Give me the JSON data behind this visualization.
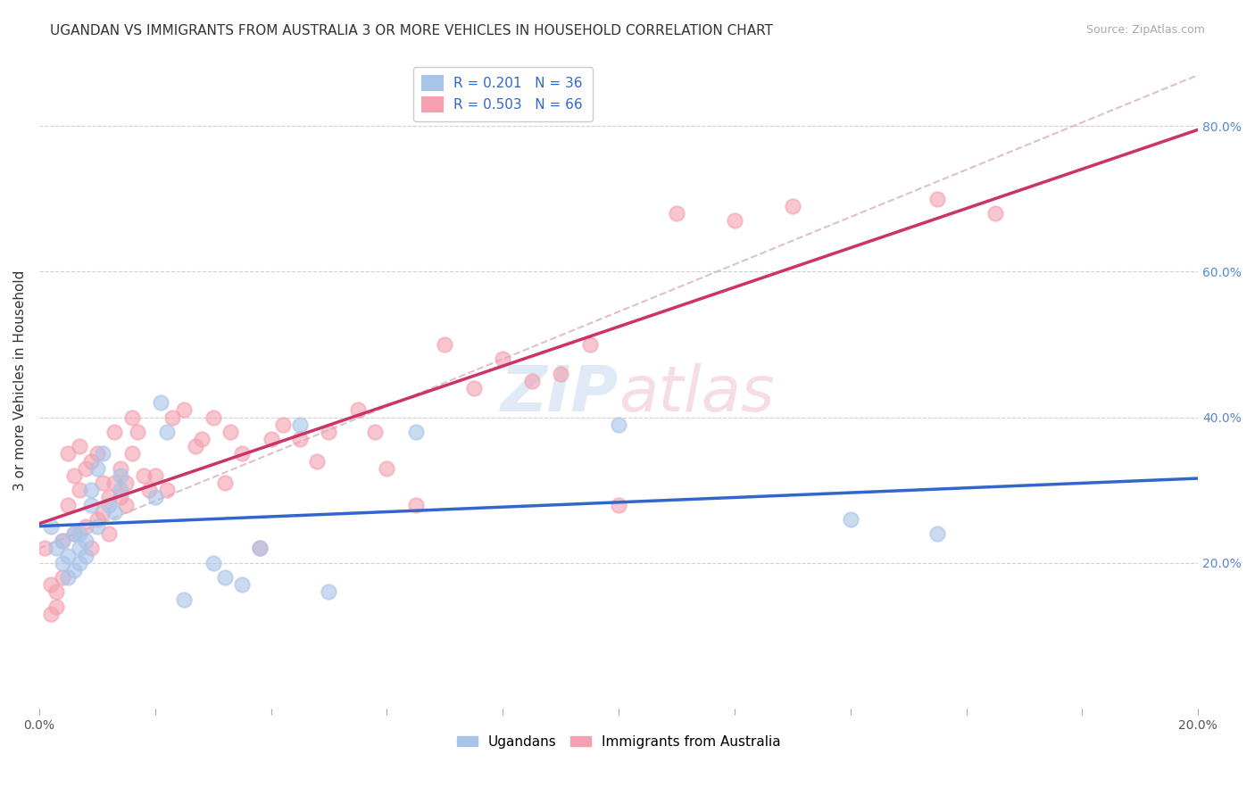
{
  "title": "UGANDAN VS IMMIGRANTS FROM AUSTRALIA 3 OR MORE VEHICLES IN HOUSEHOLD CORRELATION CHART",
  "source": "Source: ZipAtlas.com",
  "ylabel": "3 or more Vehicles in Household",
  "x_min": 0.0,
  "x_max": 0.2,
  "y_min": 0.0,
  "y_max": 0.9,
  "y_ticks_right": [
    0.2,
    0.4,
    0.6,
    0.8
  ],
  "y_tick_labels_right": [
    "20.0%",
    "40.0%",
    "60.0%",
    "80.0%"
  ],
  "ugandan_R": 0.201,
  "ugandan_N": 36,
  "australia_R": 0.503,
  "australia_N": 66,
  "ugandan_color": "#a8c4e8",
  "australia_color": "#f4a0b0",
  "ugandan_line_color": "#3366cc",
  "australia_line_color": "#cc3366",
  "background_color": "#ffffff",
  "grid_color": "#d0d0d0",
  "ugandan_x": [
    0.002,
    0.003,
    0.004,
    0.004,
    0.005,
    0.005,
    0.006,
    0.006,
    0.007,
    0.007,
    0.007,
    0.008,
    0.008,
    0.009,
    0.009,
    0.01,
    0.01,
    0.011,
    0.012,
    0.013,
    0.014,
    0.014,
    0.02,
    0.021,
    0.022,
    0.025,
    0.03,
    0.032,
    0.035,
    0.038,
    0.045,
    0.05,
    0.065,
    0.1,
    0.14,
    0.155
  ],
  "ugandan_y": [
    0.25,
    0.22,
    0.2,
    0.23,
    0.18,
    0.21,
    0.19,
    0.24,
    0.22,
    0.2,
    0.24,
    0.21,
    0.23,
    0.28,
    0.3,
    0.25,
    0.33,
    0.35,
    0.28,
    0.27,
    0.32,
    0.3,
    0.29,
    0.42,
    0.38,
    0.15,
    0.2,
    0.18,
    0.17,
    0.22,
    0.39,
    0.16,
    0.38,
    0.39,
    0.26,
    0.24
  ],
  "australia_x": [
    0.001,
    0.002,
    0.002,
    0.003,
    0.003,
    0.004,
    0.004,
    0.005,
    0.005,
    0.006,
    0.006,
    0.007,
    0.007,
    0.008,
    0.008,
    0.009,
    0.009,
    0.01,
    0.01,
    0.011,
    0.011,
    0.012,
    0.012,
    0.013,
    0.013,
    0.014,
    0.014,
    0.015,
    0.015,
    0.016,
    0.016,
    0.017,
    0.018,
    0.019,
    0.02,
    0.022,
    0.023,
    0.025,
    0.027,
    0.028,
    0.03,
    0.032,
    0.033,
    0.035,
    0.038,
    0.04,
    0.042,
    0.045,
    0.048,
    0.05,
    0.055,
    0.058,
    0.06,
    0.065,
    0.07,
    0.075,
    0.08,
    0.085,
    0.09,
    0.095,
    0.1,
    0.11,
    0.12,
    0.13,
    0.155,
    0.165
  ],
  "australia_y": [
    0.22,
    0.17,
    0.13,
    0.14,
    0.16,
    0.23,
    0.18,
    0.35,
    0.28,
    0.32,
    0.24,
    0.3,
    0.36,
    0.25,
    0.33,
    0.22,
    0.34,
    0.35,
    0.26,
    0.27,
    0.31,
    0.29,
    0.24,
    0.38,
    0.31,
    0.33,
    0.29,
    0.31,
    0.28,
    0.35,
    0.4,
    0.38,
    0.32,
    0.3,
    0.32,
    0.3,
    0.4,
    0.41,
    0.36,
    0.37,
    0.4,
    0.31,
    0.38,
    0.35,
    0.22,
    0.37,
    0.39,
    0.37,
    0.34,
    0.38,
    0.41,
    0.38,
    0.33,
    0.28,
    0.5,
    0.44,
    0.48,
    0.45,
    0.46,
    0.5,
    0.28,
    0.68,
    0.67,
    0.69,
    0.7,
    0.68
  ],
  "title_fontsize": 11,
  "axis_label_fontsize": 11,
  "tick_fontsize": 10,
  "legend_fontsize": 11,
  "source_fontsize": 9
}
